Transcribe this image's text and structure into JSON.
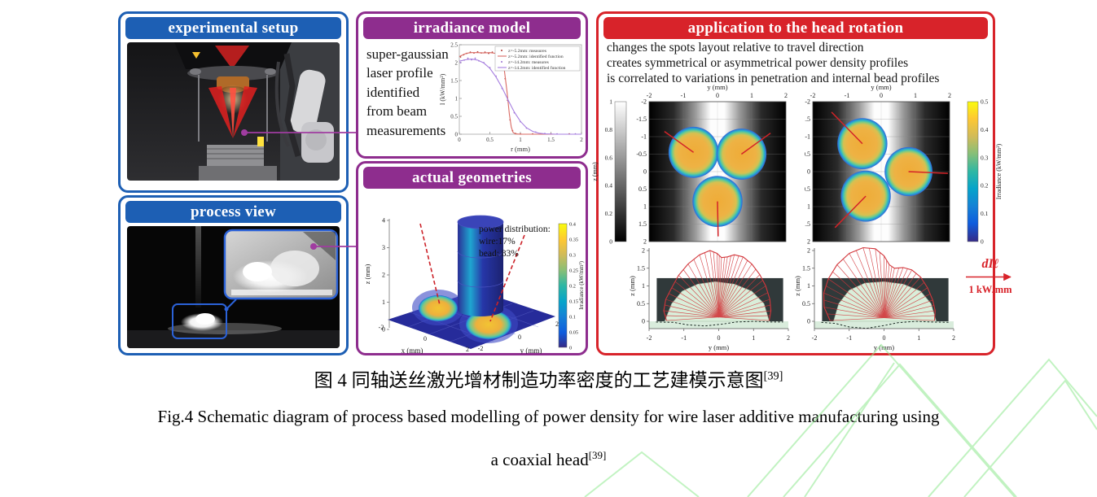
{
  "figure": {
    "caption_zh": "图 4 同轴送丝激光增材制造功率密度的工艺建模示意图",
    "caption_zh_ref": "[39]",
    "caption_en_line1": "Fig.4 Schematic diagram of process based modelling of power density for wire laser additive manufacturing using",
    "caption_en_line2": "a coaxial head",
    "caption_en_ref": "[39]"
  },
  "colors": {
    "panel_blue": "#1d5fb4",
    "panel_purple": "#8e2d8e",
    "panel_red": "#d8232a",
    "connector_purple": "#a03ca0",
    "laser_red": "#cc2128",
    "spot_orange": "#efac38",
    "watermark_green": "#8fe98f"
  },
  "panels": {
    "experimental_setup": {
      "title": "experimental setup"
    },
    "process_view": {
      "title": "process view"
    },
    "irradiance_model": {
      "title": "irradiance model",
      "description_lines": [
        "super-gaussian",
        "laser profile",
        "identified",
        "from beam",
        "measurements"
      ]
    },
    "actual_geometries": {
      "title": "actual geometries"
    },
    "head_rotation": {
      "title": "application to the head rotation",
      "bullets": [
        "changes the spots layout relative to travel direction",
        "creates symmetrical or asymmetrical power density profiles",
        "is correlated to variations in penetration and internal bead profiles"
      ]
    },
    "scale_annotation": {
      "numerator": "dIℓ",
      "denominator": "1 kW/mm"
    }
  },
  "chart_data": [
    {
      "id": "irradiance",
      "type": "line",
      "xlabel": "r (mm)",
      "ylabel": "I (kW/mm²)",
      "xlim": [
        0,
        2
      ],
      "ylim": [
        0,
        2.5
      ],
      "xticks": [
        0,
        0.5,
        1,
        1.5,
        2
      ],
      "yticks": [
        0,
        0.5,
        1,
        1.5,
        2,
        2.5
      ],
      "legend_position": "top-right",
      "series": [
        {
          "name": "z=-5.2mm: measures",
          "type": "scatter",
          "color": "#b03a35",
          "points": [
            [
              0.02,
              2.16
            ],
            [
              0.07,
              2.22
            ],
            [
              0.12,
              2.26
            ],
            [
              0.18,
              2.29
            ],
            [
              0.24,
              2.27
            ],
            [
              0.3,
              2.3
            ],
            [
              0.36,
              2.27
            ],
            [
              0.42,
              2.29
            ],
            [
              0.48,
              2.26
            ],
            [
              0.54,
              2.29
            ],
            [
              0.6,
              2.27
            ],
            [
              0.66,
              2.18
            ],
            [
              0.7,
              2.02
            ],
            [
              0.75,
              1.55
            ],
            [
              0.79,
              0.95
            ],
            [
              0.83,
              0.4
            ],
            [
              0.87,
              0.1
            ],
            [
              0.92,
              0.02
            ],
            [
              1.0,
              0.01
            ],
            [
              1.2,
              0.01
            ],
            [
              1.5,
              0.01
            ],
            [
              1.8,
              0.01
            ]
          ]
        },
        {
          "name": "z=-5.2mm: identified function",
          "type": "line",
          "color": "#d96a63",
          "points": [
            [
              0,
              2.17
            ],
            [
              0.05,
              2.21
            ],
            [
              0.1,
              2.25
            ],
            [
              0.15,
              2.27
            ],
            [
              0.2,
              2.28
            ],
            [
              0.3,
              2.28
            ],
            [
              0.4,
              2.27
            ],
            [
              0.5,
              2.28
            ],
            [
              0.6,
              2.26
            ],
            [
              0.65,
              2.21
            ],
            [
              0.7,
              2.05
            ],
            [
              0.74,
              1.75
            ],
            [
              0.78,
              1.2
            ],
            [
              0.82,
              0.55
            ],
            [
              0.85,
              0.2
            ],
            [
              0.88,
              0.05
            ],
            [
              0.92,
              0.01
            ],
            [
              1.0,
              0
            ],
            [
              1.5,
              0
            ],
            [
              2,
              0
            ]
          ]
        },
        {
          "name": "z=-14.2mm: measures",
          "type": "scatter",
          "color": "#9a6fd0",
          "points": [
            [
              0.02,
              2.0
            ],
            [
              0.08,
              2.07
            ],
            [
              0.14,
              2.12
            ],
            [
              0.2,
              2.08
            ],
            [
              0.26,
              2.12
            ],
            [
              0.32,
              2.05
            ],
            [
              0.4,
              2.0
            ],
            [
              0.5,
              1.86
            ],
            [
              0.6,
              1.62
            ],
            [
              0.7,
              1.28
            ],
            [
              0.8,
              0.93
            ],
            [
              0.9,
              0.6
            ],
            [
              1.0,
              0.35
            ],
            [
              1.1,
              0.17
            ],
            [
              1.25,
              0.06
            ],
            [
              1.4,
              0.02
            ],
            [
              1.6,
              0.01
            ],
            [
              1.9,
              0.01
            ]
          ]
        },
        {
          "name": "z=-14.2mm: identified function",
          "type": "line",
          "color": "#a77fe0",
          "points": [
            [
              0,
              2.04
            ],
            [
              0.1,
              2.08
            ],
            [
              0.2,
              2.1
            ],
            [
              0.3,
              2.07
            ],
            [
              0.4,
              1.99
            ],
            [
              0.5,
              1.84
            ],
            [
              0.6,
              1.6
            ],
            [
              0.7,
              1.3
            ],
            [
              0.8,
              0.95
            ],
            [
              0.9,
              0.62
            ],
            [
              1.0,
              0.36
            ],
            [
              1.1,
              0.18
            ],
            [
              1.2,
              0.08
            ],
            [
              1.3,
              0.03
            ],
            [
              1.4,
              0.01
            ],
            [
              1.6,
              0
            ],
            [
              2,
              0
            ]
          ]
        }
      ]
    },
    {
      "id": "actual_geometries_surface",
      "type": "surface-3d",
      "xlabel": "x (mm)",
      "ylabel": "y (mm)",
      "zlabel": "z (mm)",
      "xticks": [
        -2,
        0,
        2
      ],
      "yticks": [
        2,
        0,
        -2
      ],
      "zticks": [
        0,
        1,
        2,
        3,
        4
      ],
      "annotation_lines": [
        "power distribution:",
        "wire:17%",
        "bead: 83%"
      ],
      "colorbar": {
        "label": "Irradiance (kW/mm²)",
        "ticks": [
          0,
          0.05,
          0.1,
          0.15,
          0.2,
          0.25,
          0.3,
          0.35,
          0.4
        ]
      }
    },
    {
      "id": "spot_map_left",
      "type": "heatmap",
      "xlabel": "y (mm)",
      "ylabel": "x (mm)",
      "xlim": [
        -2,
        2
      ],
      "ylim": [
        -2,
        2
      ],
      "xticks": [
        -2,
        -1,
        0,
        1,
        2
      ],
      "yticks": [
        -2,
        -1.5,
        -1,
        -0.5,
        0,
        0.5,
        1,
        1.5,
        2
      ],
      "colorbar": {
        "side": "left",
        "label": "z (mm)",
        "ticks": [
          0,
          0.2,
          0.4,
          0.6,
          0.8,
          1
        ]
      },
      "spots": [
        {
          "y": -0.7,
          "x": -0.55,
          "r": 0.73,
          "beam_end": [
            -1.55,
            -1.15
          ]
        },
        {
          "y": 0.7,
          "x": -0.5,
          "r": 0.73,
          "beam_end": [
            1.55,
            -1.1
          ]
        },
        {
          "y": 0.0,
          "x": 0.85,
          "r": 0.73,
          "beam_end": [
            0.02,
            1.85
          ]
        }
      ]
    },
    {
      "id": "spot_map_right",
      "type": "heatmap",
      "xlabel": "y (mm)",
      "ylabel": "x (mm)",
      "xlim": [
        -2,
        2
      ],
      "ylim": [
        -2,
        2
      ],
      "xticks": [
        -2,
        -1,
        0,
        1,
        2
      ],
      "yticks": [
        -2,
        -1.5,
        -1,
        -0.5,
        0,
        0.5,
        1,
        1.5,
        2
      ],
      "colorbar": {
        "side": "right",
        "label": "Irradiance (kW/mm²)",
        "ticks": [
          0,
          0.1,
          0.2,
          0.3,
          0.4,
          0.5
        ]
      },
      "spots": [
        {
          "y": -0.55,
          "x": -0.8,
          "r": 0.73,
          "beam_end": [
            -1.45,
            -1.7
          ]
        },
        {
          "y": -0.45,
          "x": 0.7,
          "r": 0.73,
          "beam_end": [
            -1.35,
            1.6
          ]
        },
        {
          "y": 0.8,
          "x": 0.0,
          "r": 0.7,
          "beam_end": [
            1.95,
            0.05
          ]
        }
      ]
    },
    {
      "id": "bead_profile_left",
      "type": "cross-section",
      "xlabel": "y (mm)",
      "ylabel": "z (mm)",
      "xlim": [
        -2,
        2
      ],
      "ylim": [
        0,
        2
      ],
      "xticks": [
        -2,
        -1,
        0,
        1,
        2
      ],
      "yticks": [
        0,
        0.5,
        1,
        1.5,
        2
      ],
      "rose_center": [
        0,
        0.12
      ],
      "rose_outline": [
        [
          -1.5,
          0.02
        ],
        [
          -1.58,
          0.3
        ],
        [
          -1.52,
          0.62
        ],
        [
          -1.35,
          0.95
        ],
        [
          -1.15,
          1.3
        ],
        [
          -0.88,
          1.62
        ],
        [
          -0.55,
          1.88
        ],
        [
          -0.25,
          2.0
        ],
        [
          -0.05,
          1.92
        ],
        [
          0.08,
          1.8
        ],
        [
          0.25,
          1.82
        ],
        [
          0.45,
          1.88
        ],
        [
          0.7,
          1.82
        ],
        [
          0.95,
          1.62
        ],
        [
          1.18,
          1.32
        ],
        [
          1.35,
          1.0
        ],
        [
          1.47,
          0.62
        ],
        [
          1.5,
          0.3
        ],
        [
          1.45,
          0.02
        ]
      ],
      "bead_outline": [
        [
          -1.55,
          0
        ],
        [
          -1.35,
          0.5
        ],
        [
          -1.05,
          0.85
        ],
        [
          -0.6,
          1.05
        ],
        [
          -0.1,
          1.12
        ],
        [
          0.45,
          1.05
        ],
        [
          0.95,
          0.85
        ],
        [
          1.3,
          0.5
        ],
        [
          1.45,
          0
        ]
      ],
      "penetration_line": [
        [
          -1.8,
          -0.02
        ],
        [
          -1.3,
          -0.03
        ],
        [
          -0.9,
          -0.1
        ],
        [
          -0.4,
          -0.13
        ],
        [
          0.1,
          -0.08
        ],
        [
          0.5,
          -0.02
        ],
        [
          1.0,
          0.0
        ],
        [
          1.5,
          -0.02
        ],
        [
          1.85,
          -0.02
        ]
      ]
    },
    {
      "id": "bead_profile_right",
      "type": "cross-section",
      "xlabel": "y (mm)",
      "ylabel": "z (mm)",
      "xlim": [
        -2,
        2
      ],
      "ylim": [
        0,
        2
      ],
      "xticks": [
        -2,
        -1,
        0,
        1,
        2
      ],
      "yticks": [
        0,
        0.5,
        1,
        1.5,
        2
      ],
      "rose_center": [
        0,
        0.1
      ],
      "rose_outline": [
        [
          -1.55,
          0.02
        ],
        [
          -1.72,
          0.4
        ],
        [
          -1.73,
          0.8
        ],
        [
          -1.6,
          1.2
        ],
        [
          -1.35,
          1.6
        ],
        [
          -1.0,
          1.92
        ],
        [
          -0.6,
          2.08
        ],
        [
          -0.25,
          2.05
        ],
        [
          0.0,
          1.85
        ],
        [
          0.15,
          1.6
        ],
        [
          0.3,
          1.5
        ],
        [
          0.55,
          1.52
        ],
        [
          0.8,
          1.45
        ],
        [
          1.05,
          1.25
        ],
        [
          1.25,
          0.95
        ],
        [
          1.4,
          0.6
        ],
        [
          1.47,
          0.3
        ],
        [
          1.45,
          0.02
        ]
      ],
      "bead_outline": [
        [
          -1.45,
          0
        ],
        [
          -1.3,
          0.5
        ],
        [
          -1.0,
          0.88
        ],
        [
          -0.55,
          1.08
        ],
        [
          0,
          1.12
        ],
        [
          0.55,
          1.05
        ],
        [
          1.05,
          0.85
        ],
        [
          1.35,
          0.5
        ],
        [
          1.5,
          0
        ]
      ],
      "penetration_line": [
        [
          -1.8,
          -0.03
        ],
        [
          -1.4,
          -0.06
        ],
        [
          -1.0,
          -0.16
        ],
        [
          -0.5,
          -0.2
        ],
        [
          0,
          -0.12
        ],
        [
          0.4,
          -0.04
        ],
        [
          0.9,
          0.0
        ],
        [
          1.4,
          -0.02
        ],
        [
          1.85,
          -0.03
        ]
      ]
    }
  ]
}
